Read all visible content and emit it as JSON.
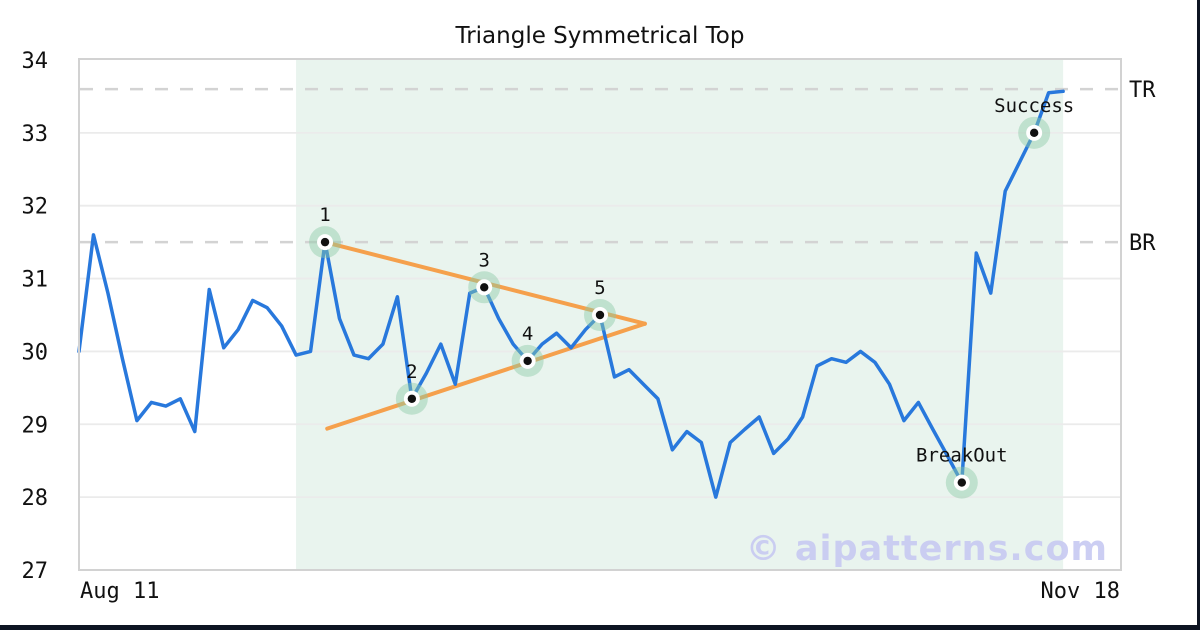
{
  "frame": {
    "watermark": "© aipatterns.com"
  },
  "colors": {
    "price_line": "#2878dc",
    "trendline": "#f5a04c",
    "region_fill": "#e9f4ee",
    "marker_halo": "#8ccaa6",
    "marker_dot": "#111111",
    "level_dash": "#d3d3d3",
    "gridline": "#ebebeb",
    "plot_border": "#d2d2d2",
    "text": "#111111",
    "watermark_color": "#c7c9f2",
    "frame_border": "#0d1422"
  },
  "chart_data": {
    "type": "line",
    "title": "Triangle Symmetrical Top",
    "x_axis": {
      "start_label": "Aug 11",
      "end_label": "Nov 18",
      "unit": "trading-day-index",
      "index_range": [
        0,
        72
      ]
    },
    "y_axis": {
      "range": [
        27,
        34.01
      ],
      "ticks": [
        27,
        28,
        29,
        30,
        31,
        32,
        33,
        34
      ],
      "grid": true
    },
    "series": {
      "name": "price",
      "start_index": 0,
      "values": [
        30.0,
        31.6,
        30.8,
        29.9,
        29.05,
        29.3,
        29.25,
        29.35,
        28.9,
        30.85,
        30.05,
        30.3,
        30.7,
        30.6,
        30.35,
        29.95,
        30.0,
        31.5,
        30.45,
        29.95,
        29.9,
        30.1,
        30.75,
        29.35,
        29.7,
        30.1,
        29.55,
        30.8,
        30.88,
        30.45,
        30.1,
        29.87,
        30.1,
        30.25,
        30.05,
        30.3,
        30.5,
        29.65,
        29.75,
        29.55,
        29.35,
        28.65,
        28.9,
        28.75,
        28.0,
        28.75,
        28.93,
        29.1,
        28.6,
        28.8,
        29.1,
        29.8,
        29.9,
        29.85,
        30.0,
        29.85,
        29.55,
        29.05,
        29.3,
        28.93,
        28.57,
        28.2,
        31.35,
        30.8,
        32.2,
        32.6,
        33.0,
        33.55,
        33.57
      ]
    },
    "levels": [
      {
        "label": "TR",
        "value": 33.6
      },
      {
        "label": "BR",
        "value": 31.5
      }
    ],
    "pattern_region": {
      "from_index": 15,
      "to_index": 68
    },
    "trendlines": [
      {
        "name": "upper",
        "from": {
          "index": 17.0,
          "value": 31.5
        },
        "to": {
          "index": 39.1,
          "value": 30.38
        }
      },
      {
        "name": "lower",
        "from": {
          "index": 17.15,
          "value": 28.94
        },
        "to": {
          "index": 39.1,
          "value": 30.38
        }
      }
    ],
    "pattern_points": [
      {
        "label": "1",
        "index": 17,
        "value": 31.5
      },
      {
        "label": "2",
        "index": 23,
        "value": 29.35
      },
      {
        "label": "3",
        "index": 28,
        "value": 30.88
      },
      {
        "label": "4",
        "index": 31,
        "value": 29.87
      },
      {
        "label": "5",
        "index": 36,
        "value": 30.5
      }
    ],
    "annotations": [
      {
        "label": "BreakOut",
        "index": 61,
        "value": 28.2
      },
      {
        "label": "Success",
        "index": 66,
        "value": 33.0
      }
    ]
  }
}
